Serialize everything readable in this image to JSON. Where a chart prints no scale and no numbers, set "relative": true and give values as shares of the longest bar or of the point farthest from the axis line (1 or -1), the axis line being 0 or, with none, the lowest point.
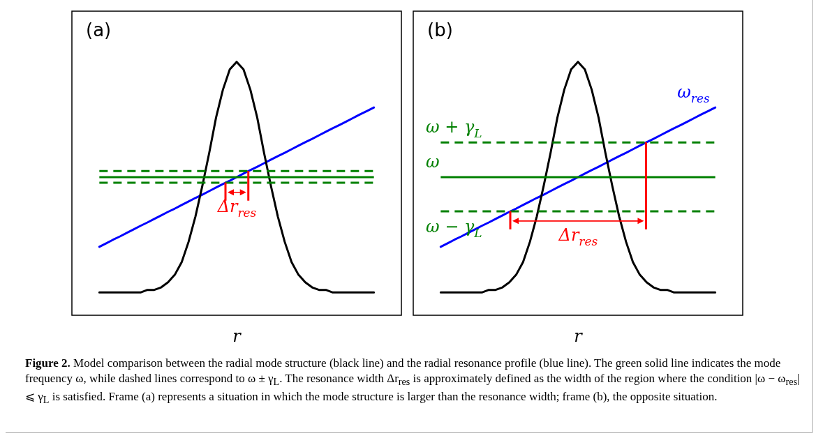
{
  "chart_data": [
    {
      "type": "line",
      "title": "(a)",
      "xlabel": "r",
      "relative": true,
      "tick_labels": false,
      "legend": false,
      "marker": "none",
      "categories": [
        null,
        null,
        null,
        null,
        null,
        null,
        null,
        null,
        null,
        null,
        null,
        null,
        null,
        null,
        null,
        null,
        null,
        null,
        null,
        null,
        null,
        null,
        null,
        null,
        null,
        null,
        null,
        null,
        null,
        null,
        null,
        null,
        null,
        null,
        null,
        null,
        null,
        null,
        null,
        null,
        null
      ],
      "series": [
        {
          "color": "#000000",
          "values": [
            0.09,
            0.09,
            0.09,
            0.09,
            0.09,
            0.09,
            0.09,
            0.1,
            0.1,
            0.11,
            0.13,
            0.16,
            0.21,
            0.29,
            0.39,
            0.51,
            0.64,
            0.78,
            0.89,
            0.97,
            1.0,
            0.97,
            0.89,
            0.78,
            0.64,
            0.51,
            0.39,
            0.29,
            0.21,
            0.16,
            0.13,
            0.11,
            0.1,
            0.1,
            0.09,
            0.09,
            0.09,
            0.09,
            0.09,
            0.09,
            0.09
          ]
        },
        {
          "color": "#0000ff",
          "values": [
            0.27,
            0.284,
            0.298,
            0.311,
            0.325,
            0.339,
            0.353,
            0.366,
            0.38,
            0.394,
            0.408,
            0.421,
            0.435,
            0.449,
            0.463,
            0.476,
            0.49,
            0.504,
            0.518,
            0.531,
            0.545,
            0.559,
            0.573,
            0.586,
            0.6,
            0.614,
            0.628,
            0.641,
            0.655,
            0.669,
            0.683,
            0.696,
            0.71,
            0.724,
            0.738,
            0.751,
            0.765,
            0.779,
            0.793,
            0.806,
            0.82
          ]
        }
      ],
      "ref_lines": [
        {
          "axis": "y",
          "value": 0.569,
          "color": "#008000",
          "line_style": "dashed"
        },
        {
          "axis": "y",
          "value": 0.545,
          "color": "#008000",
          "line_style": "solid"
        },
        {
          "axis": "y",
          "value": 0.523,
          "color": "#008000",
          "line_style": "dashed"
        }
      ],
      "annotations": [
        "Δr$_{res}$"
      ]
    },
    {
      "type": "line",
      "title": "(b)",
      "xlabel": "r",
      "relative": true,
      "tick_labels": false,
      "legend": false,
      "marker": "none",
      "categories": [
        null,
        null,
        null,
        null,
        null,
        null,
        null,
        null,
        null,
        null,
        null,
        null,
        null,
        null,
        null,
        null,
        null,
        null,
        null,
        null,
        null,
        null,
        null,
        null,
        null,
        null,
        null,
        null,
        null,
        null,
        null,
        null,
        null,
        null,
        null,
        null,
        null,
        null,
        null,
        null,
        null
      ],
      "series": [
        {
          "color": "#000000",
          "values": [
            0.09,
            0.09,
            0.09,
            0.09,
            0.09,
            0.09,
            0.09,
            0.1,
            0.1,
            0.11,
            0.13,
            0.16,
            0.21,
            0.29,
            0.39,
            0.51,
            0.64,
            0.78,
            0.89,
            0.97,
            1.0,
            0.97,
            0.89,
            0.78,
            0.64,
            0.51,
            0.39,
            0.29,
            0.21,
            0.16,
            0.13,
            0.11,
            0.1,
            0.1,
            0.09,
            0.09,
            0.09,
            0.09,
            0.09,
            0.09,
            0.09
          ]
        },
        {
          "name": "ω$_{res}$",
          "color": "#0000ff",
          "values": [
            0.27,
            0.284,
            0.298,
            0.311,
            0.325,
            0.339,
            0.353,
            0.366,
            0.38,
            0.394,
            0.408,
            0.421,
            0.435,
            0.449,
            0.463,
            0.476,
            0.49,
            0.504,
            0.518,
            0.531,
            0.545,
            0.559,
            0.573,
            0.586,
            0.6,
            0.614,
            0.628,
            0.641,
            0.655,
            0.669,
            0.683,
            0.696,
            0.71,
            0.724,
            0.738,
            0.751,
            0.765,
            0.779,
            0.793,
            0.806,
            0.82
          ]
        }
      ],
      "ref_lines": [
        {
          "axis": "y",
          "value": 0.682,
          "label": "ω + γ$_{L}$",
          "color": "#008000",
          "line_style": "dashed"
        },
        {
          "axis": "y",
          "value": 0.545,
          "label": "ω",
          "color": "#008000",
          "line_style": "solid"
        },
        {
          "axis": "y",
          "value": 0.41,
          "label": "ω − γ$_{L}$",
          "color": "#008000",
          "line_style": "dashed"
        }
      ],
      "annotations": [
        "Δr$_{res}$",
        "Figure 2.",
        "Model comparison between the radial mode structure (black line) and the radial resonance profile (blue line). The green solid line indicates the mode frequency ω, while dashed lines correspond to ω ± γ$_{L}$. The resonance width Δr$_{res}$ is approximately defined as the width of the region where the condition |ω − ω$_{res}$| ⩽ γ$_{L}$ is satisfied. Frame (a) represents a situation in which the mode structure is larger than the resonance width; frame (b), the opposite situation."
      ]
    }
  ]
}
